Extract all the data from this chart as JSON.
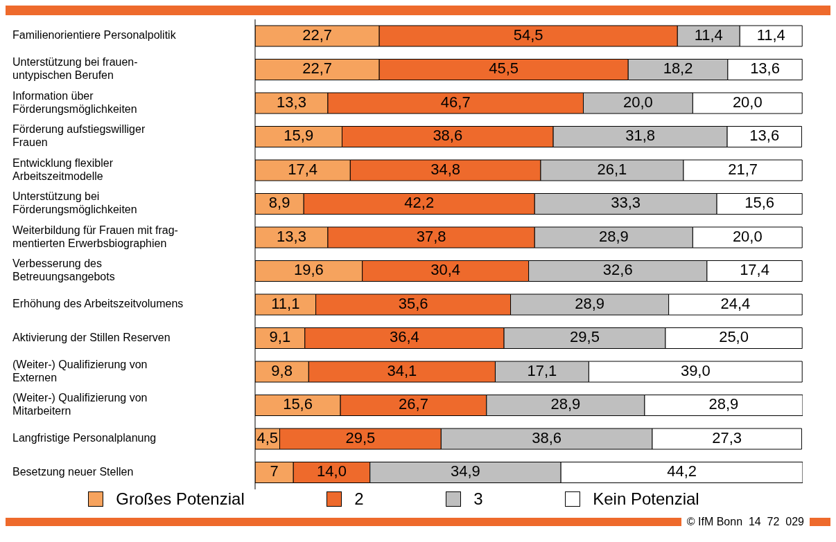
{
  "chart_data": {
    "type": "bar",
    "orientation": "horizontal",
    "stacked": true,
    "legend": "bottom",
    "grid": false,
    "tick_labels": "y",
    "categories": [
      "Familienorientiere Personalpolitik",
      "Unterstützung bei frauen-\nuntypischen Berufen",
      "Information über\nFörderungsmöglichkeiten",
      "Förderung aufstiegswilliger\nFrauen",
      "Entwicklung flexibler\nArbeitszeitmodelle",
      "Unterstützung bei\nFörderungsmöglichkeiten",
      "Weiterbildung für Frauen mit frag-\nmentierten Erwerbsbiographien",
      "Verbesserung des\nBetreuungsangebots",
      "Erhöhung des Arbeitszeitvolumens",
      "Aktivierung der Stillen Reserven",
      "(Weiter-) Qualifizierung von\nExternen",
      "(Weiter-) Qualifizierung von\nMitarbeitern",
      "Langfristige Personalplanung",
      "Besetzung neuer Stellen"
    ],
    "series": [
      {
        "name": "Großes Potenzial",
        "color": "#f6a35e",
        "values": [
          22.7,
          22.7,
          13.3,
          15.9,
          17.4,
          8.9,
          13.3,
          19.6,
          11.1,
          9.1,
          9.8,
          15.6,
          4.5,
          7
        ],
        "value_labels": [
          "22,7",
          "22,7",
          "13,3",
          "15,9",
          "17,4",
          "8,9",
          "13,3",
          "19,6",
          "11,1",
          "9,1",
          "9,8",
          "15,6",
          "4,5",
          "7"
        ]
      },
      {
        "name": "2",
        "color": "#ee6a2c",
        "values": [
          54.5,
          45.5,
          46.7,
          38.6,
          34.8,
          42.2,
          37.8,
          30.4,
          35.6,
          36.4,
          34.1,
          26.7,
          29.5,
          14.0
        ],
        "value_labels": [
          "54,5",
          "45,5",
          "46,7",
          "38,6",
          "34,8",
          "42,2",
          "37,8",
          "30,4",
          "35,6",
          "36,4",
          "34,1",
          "26,7",
          "29,5",
          "14,0"
        ]
      },
      {
        "name": "3",
        "color": "#bfbfbf",
        "values": [
          11.4,
          18.2,
          20.0,
          31.8,
          26.1,
          33.3,
          28.9,
          32.6,
          28.9,
          29.5,
          17.1,
          28.9,
          38.6,
          34.9
        ],
        "value_labels": [
          "11,4",
          "18,2",
          "20,0",
          "31,8",
          "26,1",
          "33,3",
          "28,9",
          "32,6",
          "28,9",
          "29,5",
          "17,1",
          "28,9",
          "38,6",
          "34,9"
        ]
      },
      {
        "name": "Kein Potenzial",
        "color": "#ffffff",
        "values": [
          11.4,
          13.6,
          20.0,
          13.6,
          21.7,
          15.6,
          20.0,
          17.4,
          24.4,
          25.0,
          39.0,
          28.9,
          27.3,
          44.2
        ],
        "value_labels": [
          "11,4",
          "13,6",
          "20,0",
          "13,6",
          "21,7",
          "15,6",
          "20,0",
          "17,4",
          "24,4",
          "25,0",
          "39,0",
          "28,9",
          "27,3",
          "44,2"
        ]
      }
    ],
    "annotations": [
      "© IfM Bonn  14  72  029"
    ]
  }
}
